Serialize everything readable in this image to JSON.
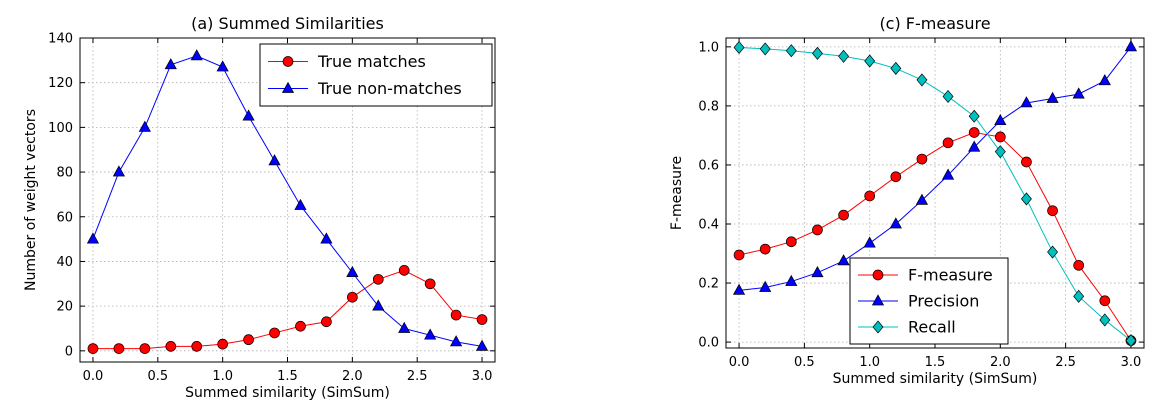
{
  "chart_data": [
    {
      "id": "a",
      "type": "line",
      "title": "(a) Summed Similarities",
      "xlabel": "Summed similarity (SimSum)",
      "ylabel": "Number of weight vectors",
      "xlim": [
        -0.1,
        3.1
      ],
      "ylim": [
        -5,
        140
      ],
      "xticks": [
        0.0,
        0.5,
        1.0,
        1.5,
        2.0,
        2.5,
        3.0
      ],
      "xtick_labels": [
        "0.0",
        "0.5",
        "1.0",
        "1.5",
        "2.0",
        "2.5",
        "3.0"
      ],
      "yticks": [
        0,
        20,
        40,
        60,
        80,
        100,
        120,
        140
      ],
      "ytick_labels": [
        "0",
        "20",
        "40",
        "60",
        "80",
        "100",
        "120",
        "140"
      ],
      "grid": true,
      "legend_position": "top-right",
      "x": [
        0.0,
        0.2,
        0.4,
        0.6,
        0.8,
        1.0,
        1.2,
        1.4,
        1.6,
        1.8,
        2.0,
        2.2,
        2.4,
        2.6,
        2.8,
        3.0
      ],
      "series": [
        {
          "name": "True matches",
          "color": "#ff0000",
          "marker": "circle",
          "values": [
            1,
            1,
            1,
            2,
            2,
            3,
            5,
            8,
            11,
            13,
            24,
            32,
            36,
            30,
            16,
            14
          ]
        },
        {
          "name": "True non-matches",
          "color": "#0000ff",
          "marker": "triangle",
          "values": [
            50,
            80,
            100,
            128,
            132,
            127,
            105,
            85,
            65,
            50,
            35,
            20,
            10,
            7,
            4,
            2
          ]
        }
      ]
    },
    {
      "id": "c",
      "type": "line",
      "title": "(c) F-measure",
      "xlabel": "Summed similarity (SimSum)",
      "ylabel": "F-measure",
      "xlim": [
        -0.1,
        3.1
      ],
      "ylim": [
        -0.02,
        1.03
      ],
      "xticks": [
        0.0,
        0.5,
        1.0,
        1.5,
        2.0,
        2.5,
        3.0
      ],
      "xtick_labels": [
        "0.0",
        "0.5",
        "1.0",
        "1.5",
        "2.0",
        "2.5",
        "3.0"
      ],
      "yticks": [
        0.0,
        0.2,
        0.4,
        0.6,
        0.8,
        1.0
      ],
      "ytick_labels": [
        "0.0",
        "0.2",
        "0.4",
        "0.6",
        "0.8",
        "1.0"
      ],
      "grid": true,
      "legend_position": "bottom-center",
      "x": [
        0.0,
        0.2,
        0.4,
        0.6,
        0.8,
        1.0,
        1.2,
        1.4,
        1.6,
        1.8,
        2.0,
        2.2,
        2.4,
        2.6,
        2.8,
        3.0
      ],
      "series": [
        {
          "name": "F-measure",
          "color": "#ff0000",
          "marker": "circle",
          "values": [
            0.295,
            0.315,
            0.34,
            0.38,
            0.43,
            0.495,
            0.56,
            0.62,
            0.675,
            0.71,
            0.695,
            0.61,
            0.445,
            0.26,
            0.14,
            0.005
          ]
        },
        {
          "name": "Precision",
          "color": "#0000ff",
          "marker": "triangle",
          "values": [
            0.175,
            0.185,
            0.205,
            0.235,
            0.275,
            0.335,
            0.4,
            0.48,
            0.565,
            0.66,
            0.75,
            0.81,
            0.825,
            0.84,
            0.885,
            1.0
          ]
        },
        {
          "name": "Recall",
          "color": "#00bfbf",
          "marker": "diamond",
          "values": [
            0.998,
            0.993,
            0.987,
            0.978,
            0.968,
            0.952,
            0.927,
            0.888,
            0.832,
            0.765,
            0.645,
            0.485,
            0.305,
            0.155,
            0.075,
            0.005
          ]
        }
      ]
    }
  ]
}
